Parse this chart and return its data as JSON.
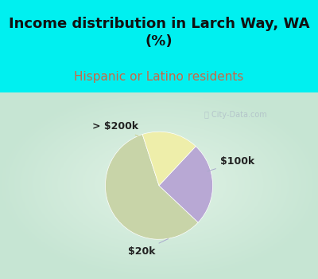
{
  "title": "Income distribution in Larch Way, WA\n(%)",
  "subtitle": "Hispanic or Latino residents",
  "slices": [
    {
      "label": "$20k",
      "value": 58,
      "color": "#c8d4a8"
    },
    {
      "label": "$100k",
      "value": 25,
      "color": "#b8a8d4"
    },
    {
      "label": "> $200k",
      "value": 17,
      "color": "#eeeeaa"
    }
  ],
  "top_bg_color": "#00f0f0",
  "chart_bg_color": "#c8e8d8",
  "title_fontsize": 13,
  "subtitle_fontsize": 11,
  "subtitle_color": "#cc6644",
  "watermark": "City-Data.com",
  "watermark_color": "#b0c0c8",
  "label_fontsize": 9,
  "startangle": 108,
  "border_color": "#00e8e8",
  "border_width": 6
}
